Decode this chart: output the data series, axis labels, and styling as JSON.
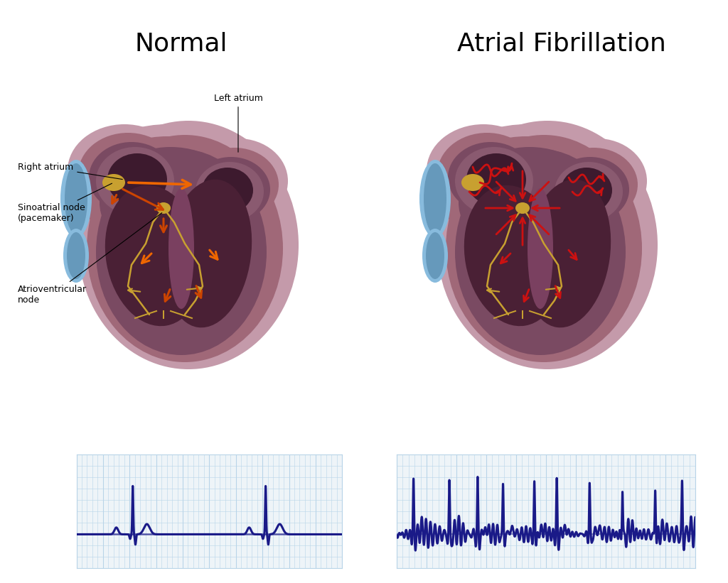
{
  "title_normal": "Normal",
  "title_af": "Atrial Fibrillation",
  "label_left_atrium": "Left atrium",
  "label_right_atrium": "Right atrium",
  "label_sa_node": "Sinoatrial node\n(pacemaker)",
  "label_av_node": "Atrioventricular\nnode",
  "background_color": "#ffffff",
  "heart_outer_color": "#c49aaa",
  "heart_mid_color": "#a06878",
  "heart_inner_color": "#7a4a62",
  "heart_wall_color": "#8a5570",
  "chamber_dark": "#4a2035",
  "atrium_color": "#8a5a70",
  "atrium_inner": "#3d1a2e",
  "septum_color": "#7a4060",
  "blue_vessel_color": "#6699bb",
  "blue_vessel_light": "#88bbdd",
  "sa_node_color": "#c8a030",
  "av_node_color": "#c8a030",
  "arrow_normal_color": "#cc4400",
  "arrow_normal_bright": "#ee6600",
  "arrow_af_color": "#cc1111",
  "conduction_color": "#c8a030",
  "conduction_light": "#e8c050",
  "ecg_color": "#1a1a88",
  "grid_color": "#b8d4e8",
  "grid_major_color": "#9abbd0",
  "ecg_bg_color": "#eef4f8",
  "title_fontsize": 26,
  "label_fontsize": 9,
  "ecg_linewidth": 2.2
}
